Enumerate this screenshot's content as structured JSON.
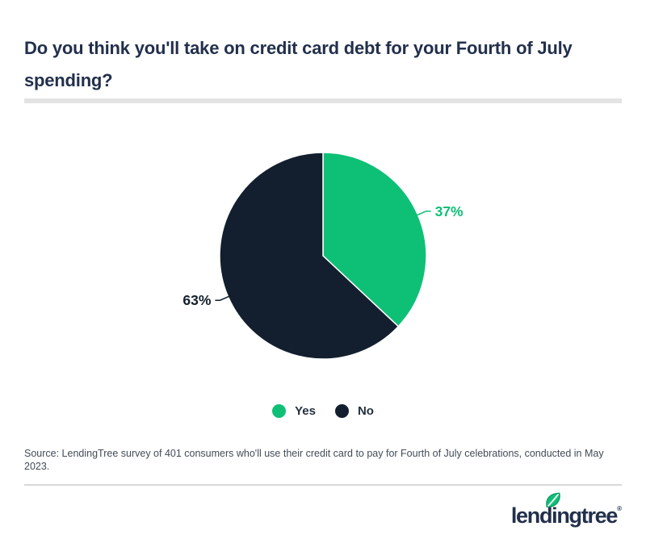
{
  "title": "Do you think you'll take on credit card debt for your Fourth of July spending?",
  "chart_data": {
    "type": "pie",
    "title": "Do you think you'll take on credit card debt for your Fourth of July spending?",
    "categories": [
      "Yes",
      "No"
    ],
    "values": [
      37,
      63
    ],
    "series": [
      {
        "label": "Yes",
        "value": 37,
        "display": "37%",
        "color": "#0ec076"
      },
      {
        "label": "No",
        "value": 63,
        "display": "63%",
        "color": "#131f2e"
      }
    ],
    "start_angle": "12 o'clock",
    "direction": "clockwise",
    "legend_position": "bottom",
    "slice_gap_color": "#ffffff"
  },
  "legend": {
    "items": [
      {
        "label": "Yes",
        "color": "#0ec076"
      },
      {
        "label": "No",
        "color": "#131f2e"
      }
    ]
  },
  "source_note": "Source: LendingTree survey of 401 consumers who'll use their credit card to pay for Fourth of July celebrations, conducted in May 2023.",
  "footer": {
    "brand_wordmark": "lendingtree",
    "registered_mark": "®"
  },
  "colors": {
    "brand_green": "#0ec076",
    "slice_navy": "#131f2e",
    "title_navy": "#22304c",
    "legend_text": "#25313e",
    "source_text": "#434b57",
    "divider_bar": "#e3e3e3",
    "footer_rule": "#d8d8d8"
  }
}
